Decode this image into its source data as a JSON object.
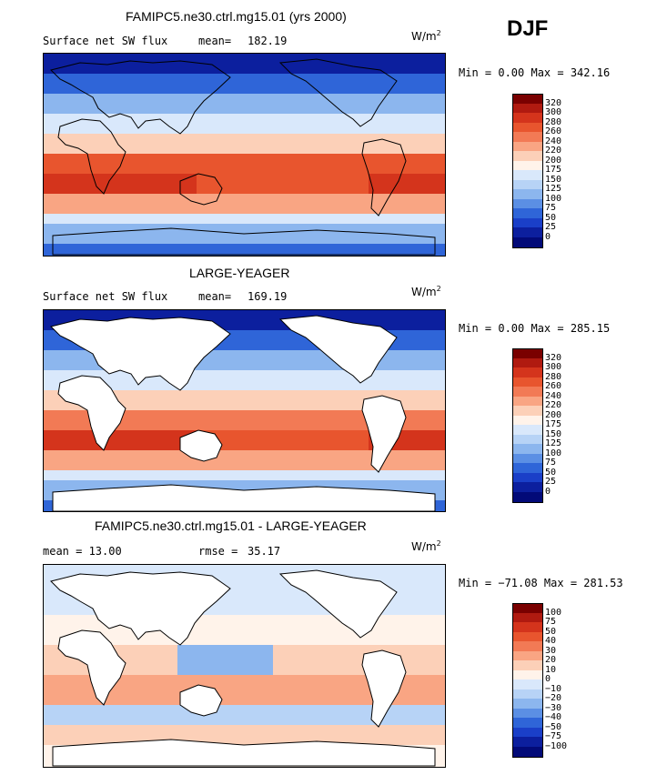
{
  "season": "DJF",
  "units": {
    "base": "W/m",
    "exp": "2"
  },
  "colors": {
    "ocean_blue": "#2255cc",
    "land": "#ffffff",
    "coast": "#000000"
  },
  "panels": [
    {
      "title": "FAMIPC5.ne30.ctrl.mg15.01 (yrs 2000)",
      "left_label": "Surface net SW flux",
      "mid_label": "mean=",
      "mid_value": "182.19",
      "minmax": "Min =   0.00 Max = 342.16",
      "colorbar": {
        "labels": [
          "320",
          "300",
          "280",
          "260",
          "240",
          "220",
          "200",
          "175",
          "150",
          "125",
          "100",
          "75",
          "50",
          "25",
          "0"
        ],
        "colors": [
          "#7a0000",
          "#b01a10",
          "#d4341c",
          "#e8552e",
          "#f27a55",
          "#f9a583",
          "#fcd0b8",
          "#fff3ea",
          "#d9e8fb",
          "#b7d3f6",
          "#8cb6ee",
          "#5b8fe4",
          "#2f65d8",
          "#1a3fc8",
          "#0c1f9e",
          "#020a78"
        ]
      },
      "map": {
        "kind": "sw_model"
      }
    },
    {
      "title": "LARGE-YEAGER",
      "left_label": "Surface net SW flux",
      "mid_label": "mean=",
      "mid_value": "169.19",
      "minmax": "Min =   0.00 Max = 285.15",
      "colorbar": {
        "labels": [
          "320",
          "300",
          "280",
          "260",
          "240",
          "220",
          "200",
          "175",
          "150",
          "125",
          "100",
          "75",
          "50",
          "25",
          "0"
        ],
        "colors": [
          "#7a0000",
          "#b01a10",
          "#d4341c",
          "#e8552e",
          "#f27a55",
          "#f9a583",
          "#fcd0b8",
          "#fff3ea",
          "#d9e8fb",
          "#b7d3f6",
          "#8cb6ee",
          "#5b8fe4",
          "#2f65d8",
          "#1a3fc8",
          "#0c1f9e",
          "#020a78"
        ]
      },
      "map": {
        "kind": "sw_obs"
      }
    },
    {
      "title": "FAMIPC5.ne30.ctrl.mg15.01 - LARGE-YEAGER",
      "left_label": "mean =   13.00",
      "mid_label": "rmse =",
      "mid_value": "35.17",
      "minmax": "Min = −71.08 Max = 281.53",
      "colorbar": {
        "labels": [
          "100",
          "75",
          "50",
          "40",
          "30",
          "20",
          "10",
          "0",
          "−10",
          "−20",
          "−30",
          "−40",
          "−50",
          "−75",
          "−100"
        ],
        "colors": [
          "#7a0000",
          "#b01a10",
          "#d4341c",
          "#e8552e",
          "#f27a55",
          "#f9a583",
          "#fcd0b8",
          "#fff3ea",
          "#d9e8fb",
          "#b7d3f6",
          "#8cb6ee",
          "#5b8fe4",
          "#2f65d8",
          "#1a3fc8",
          "#0c1f9e",
          "#020a78"
        ]
      },
      "map": {
        "kind": "diff"
      }
    }
  ]
}
